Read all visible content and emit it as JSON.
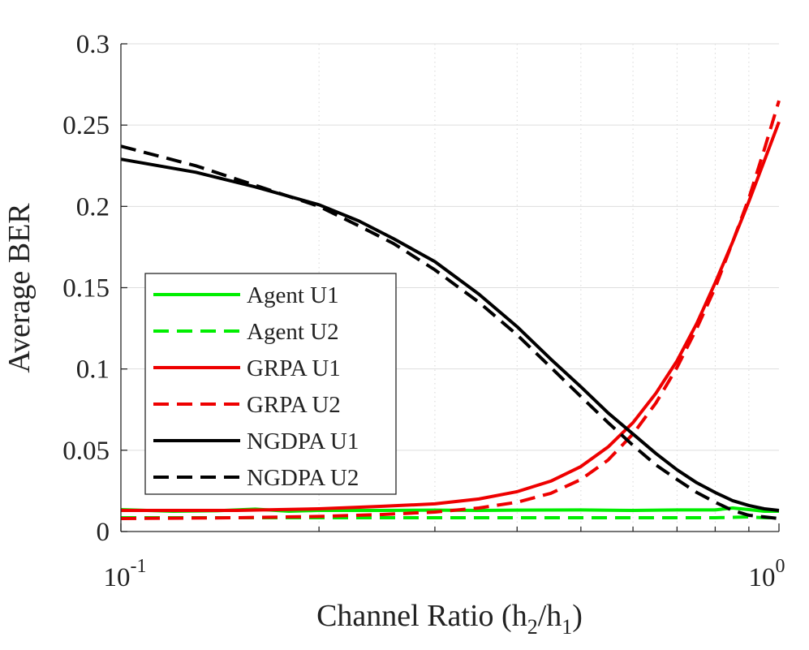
{
  "chart_data": {
    "type": "line",
    "title": "",
    "xlabel": "Channel Ratio (h",
    "xlabel_sub1": "2",
    "xlabel_mid": "/h",
    "xlabel_sub2": "1",
    "xlabel_end": ")",
    "ylabel": "Average BER",
    "xscale": "log",
    "xlim": [
      0.1,
      1.0
    ],
    "ylim": [
      0,
      0.3
    ],
    "x_tick_labels": [
      {
        "value": 0.1,
        "base": "10",
        "exp": "-1"
      },
      {
        "value": 1.0,
        "base": "10",
        "exp": "0"
      }
    ],
    "y_ticks": [
      0,
      0.05,
      0.1,
      0.15,
      0.2,
      0.25,
      0.3
    ],
    "y_tick_labels": [
      "0",
      "0.05",
      "0.1",
      "0.15",
      "0.2",
      "0.25",
      "0.3"
    ],
    "grid": true,
    "legend_position": "center-left",
    "series": [
      {
        "name": "Agent U1",
        "color": "#00ee00",
        "dash": "solid",
        "x": [
          0.1,
          0.12,
          0.14,
          0.16,
          0.18,
          0.2,
          0.25,
          0.3,
          0.35,
          0.4,
          0.5,
          0.6,
          0.7,
          0.8,
          0.85,
          0.9,
          0.95,
          1.0
        ],
        "y": [
          0.0135,
          0.0125,
          0.0128,
          0.0138,
          0.0125,
          0.013,
          0.013,
          0.0132,
          0.013,
          0.0132,
          0.0133,
          0.013,
          0.0133,
          0.0133,
          0.0145,
          0.0135,
          0.0125,
          0.0125
        ]
      },
      {
        "name": "Agent U2",
        "color": "#00ee00",
        "dash": "dashed",
        "x": [
          0.1,
          0.15,
          0.2,
          0.25,
          0.3,
          0.35,
          0.4,
          0.5,
          0.6,
          0.7,
          0.8,
          0.9,
          0.95,
          1.0
        ],
        "y": [
          0.0085,
          0.0085,
          0.0085,
          0.0085,
          0.0085,
          0.0085,
          0.0085,
          0.0085,
          0.0085,
          0.0085,
          0.0085,
          0.009,
          0.0085,
          0.0085
        ]
      },
      {
        "name": "GRPA U1",
        "color": "#ee0000",
        "dash": "solid",
        "x": [
          0.1,
          0.15,
          0.2,
          0.25,
          0.3,
          0.35,
          0.4,
          0.45,
          0.5,
          0.55,
          0.6,
          0.65,
          0.7,
          0.75,
          0.8,
          0.85,
          0.9,
          0.95,
          1.0
        ],
        "y": [
          0.013,
          0.013,
          0.014,
          0.0155,
          0.017,
          0.02,
          0.0245,
          0.031,
          0.04,
          0.052,
          0.067,
          0.085,
          0.105,
          0.128,
          0.153,
          0.178,
          0.203,
          0.228,
          0.252
        ]
      },
      {
        "name": "GRPA U2",
        "color": "#ee0000",
        "dash": "dashed",
        "x": [
          0.1,
          0.15,
          0.2,
          0.25,
          0.3,
          0.35,
          0.4,
          0.45,
          0.5,
          0.55,
          0.6,
          0.65,
          0.7,
          0.75,
          0.8,
          0.85,
          0.9,
          0.95,
          1.0
        ],
        "y": [
          0.008,
          0.0085,
          0.0093,
          0.0105,
          0.012,
          0.0145,
          0.018,
          0.0235,
          0.032,
          0.044,
          0.06,
          0.079,
          0.101,
          0.125,
          0.15,
          0.178,
          0.205,
          0.235,
          0.265
        ]
      },
      {
        "name": "NGDPA U1",
        "color": "#000000",
        "dash": "solid",
        "x": [
          0.1,
          0.13,
          0.16,
          0.2,
          0.23,
          0.26,
          0.3,
          0.35,
          0.4,
          0.45,
          0.5,
          0.55,
          0.6,
          0.65,
          0.7,
          0.75,
          0.8,
          0.85,
          0.9,
          0.95,
          1.0
        ],
        "y": [
          0.229,
          0.221,
          0.212,
          0.201,
          0.191,
          0.18,
          0.166,
          0.146,
          0.126,
          0.106,
          0.089,
          0.073,
          0.06,
          0.048,
          0.038,
          0.03,
          0.024,
          0.019,
          0.016,
          0.014,
          0.013
        ]
      },
      {
        "name": "NGDPA U2",
        "color": "#000000",
        "dash": "dashed",
        "x": [
          0.1,
          0.13,
          0.16,
          0.2,
          0.23,
          0.26,
          0.3,
          0.35,
          0.4,
          0.45,
          0.5,
          0.55,
          0.6,
          0.65,
          0.7,
          0.75,
          0.8,
          0.85,
          0.9,
          0.95,
          1.0
        ],
        "y": [
          0.237,
          0.225,
          0.213,
          0.2,
          0.188,
          0.177,
          0.161,
          0.141,
          0.121,
          0.101,
          0.083,
          0.067,
          0.053,
          0.041,
          0.032,
          0.024,
          0.018,
          0.013,
          0.01,
          0.009,
          0.008
        ]
      }
    ]
  }
}
